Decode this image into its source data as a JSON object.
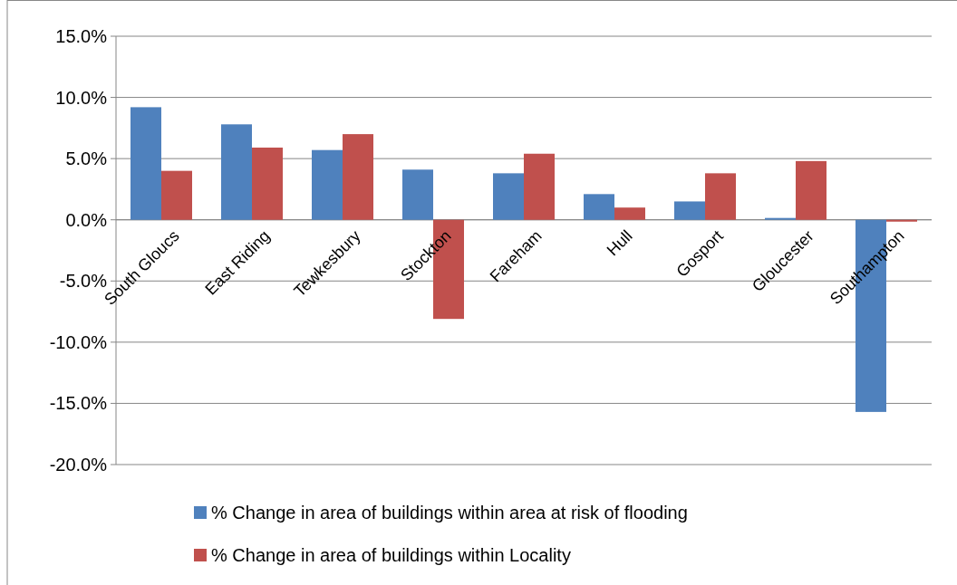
{
  "chart_data": {
    "type": "bar",
    "categories": [
      "South Gloucs",
      "East Riding",
      "Tewkesbury",
      "Stockton",
      "Fareham",
      "Hull",
      "Gosport",
      "Gloucester",
      "Southampton"
    ],
    "series": [
      {
        "name": "% Change in area of buildings within area at risk of flooding",
        "color": "#4f81bd",
        "values": [
          9.2,
          7.8,
          5.7,
          4.1,
          3.8,
          2.1,
          1.5,
          0.15,
          -15.7
        ]
      },
      {
        "name": "% Change in area of buildings within Locality",
        "color": "#c0504d",
        "values": [
          4.0,
          5.9,
          7.0,
          -8.1,
          5.4,
          1.0,
          3.8,
          4.8,
          -0.15
        ]
      }
    ],
    "ylim": [
      -20,
      15
    ],
    "yticks": [
      {
        "value": -20,
        "label": "-20.0%"
      },
      {
        "value": -15,
        "label": "-15.0%"
      },
      {
        "value": -10,
        "label": "-10.0%"
      },
      {
        "value": -5,
        "label": "-5.0%"
      },
      {
        "value": 0,
        "label": "0.0%"
      },
      {
        "value": 5,
        "label": "5.0%"
      },
      {
        "value": 10,
        "label": "10.0%"
      },
      {
        "value": 15,
        "label": "15.0%"
      }
    ],
    "grid": "y",
    "legend": "bottom"
  }
}
